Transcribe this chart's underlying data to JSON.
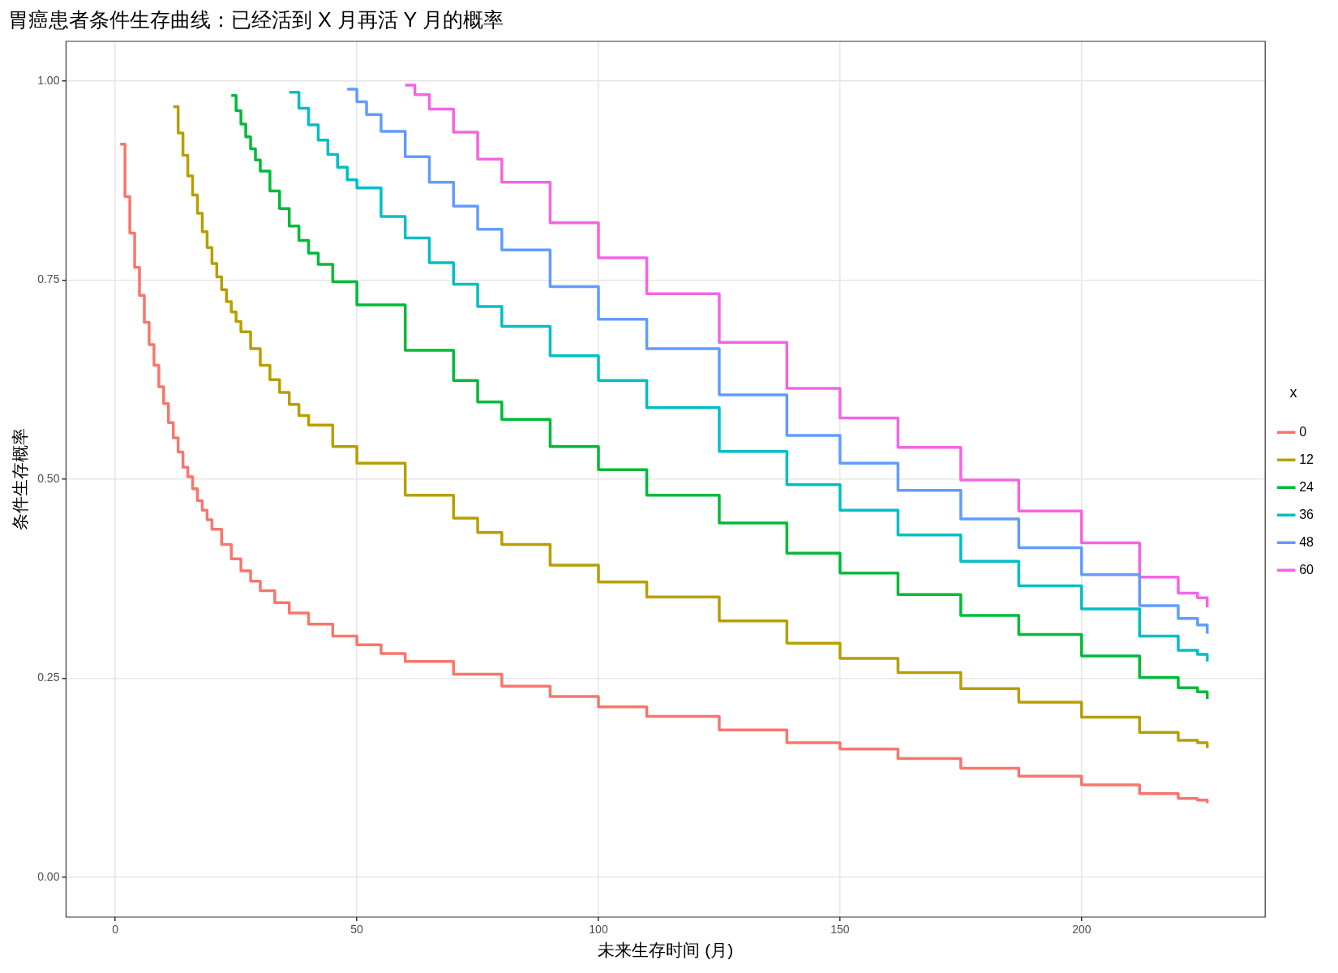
{
  "chart_data": {
    "type": "step",
    "title": "胃癌患者条件生存曲线：已经活到 X 月再活 Y 月的概率",
    "xlabel": "未来生存时间 (月)",
    "ylabel": "条件生存概率",
    "legend_title": "x",
    "legend": "right",
    "grid": true,
    "line_style": "solid",
    "xlim": [
      -10.2,
      238
    ],
    "ylim": [
      -0.05,
      1.05
    ],
    "xticks": [
      0,
      50,
      100,
      150,
      200
    ],
    "yticks": [
      {
        "value": 0,
        "label": "0.00"
      },
      {
        "value": 0.25,
        "label": "0.25"
      },
      {
        "value": 0.5,
        "label": "0.50"
      },
      {
        "value": 0.75,
        "label": "0.75"
      },
      {
        "value": 1,
        "label": "1.00"
      }
    ],
    "series": [
      {
        "name": "0",
        "color": "#f8766d",
        "x": [
          1,
          2,
          3,
          4,
          5,
          6,
          7,
          8,
          9,
          10,
          11,
          12,
          13,
          14,
          15,
          16,
          17,
          18,
          19,
          20,
          22,
          24,
          26,
          28,
          30,
          33,
          36,
          40,
          45,
          50,
          55,
          60,
          70,
          80,
          90,
          100,
          110,
          125,
          139,
          150,
          162,
          175,
          187,
          200,
          212,
          220,
          224,
          226
        ],
        "values": [
          0.921,
          0.855,
          0.809,
          0.766,
          0.731,
          0.697,
          0.669,
          0.643,
          0.616,
          0.595,
          0.571,
          0.552,
          0.534,
          0.515,
          0.503,
          0.488,
          0.473,
          0.461,
          0.449,
          0.437,
          0.418,
          0.4,
          0.385,
          0.372,
          0.36,
          0.345,
          0.332,
          0.318,
          0.303,
          0.292,
          0.281,
          0.271,
          0.255,
          0.24,
          0.227,
          0.214,
          0.202,
          0.185,
          0.169,
          0.161,
          0.149,
          0.137,
          0.127,
          0.116,
          0.105,
          0.099,
          0.097,
          0.093
        ]
      },
      {
        "name": "12",
        "color": "#b79f00",
        "x": [
          12,
          13,
          14,
          15,
          16,
          17,
          18,
          19,
          20,
          21,
          22,
          23,
          24,
          25,
          26,
          28,
          30,
          32,
          34,
          36,
          38,
          40,
          45,
          50,
          60,
          70,
          75,
          80,
          90,
          100,
          110,
          125,
          139,
          150,
          162,
          175,
          187,
          200,
          212,
          220,
          224,
          226
        ],
        "values": [
          0.968,
          0.935,
          0.907,
          0.881,
          0.857,
          0.834,
          0.811,
          0.791,
          0.771,
          0.754,
          0.738,
          0.723,
          0.71,
          0.698,
          0.685,
          0.664,
          0.643,
          0.625,
          0.609,
          0.594,
          0.58,
          0.568,
          0.541,
          0.52,
          0.48,
          0.451,
          0.433,
          0.418,
          0.392,
          0.371,
          0.352,
          0.322,
          0.294,
          0.275,
          0.257,
          0.237,
          0.22,
          0.201,
          0.182,
          0.172,
          0.169,
          0.162
        ]
      },
      {
        "name": "24",
        "color": "#00ba38",
        "x": [
          24,
          25,
          26,
          27,
          28,
          29,
          30,
          32,
          34,
          36,
          38,
          40,
          42,
          45,
          50,
          60,
          70,
          75,
          80,
          90,
          100,
          110,
          125,
          139,
          150,
          162,
          175,
          187,
          200,
          212,
          220,
          224,
          226
        ],
        "values": [
          0.982,
          0.963,
          0.946,
          0.93,
          0.915,
          0.901,
          0.887,
          0.862,
          0.84,
          0.818,
          0.8,
          0.784,
          0.77,
          0.748,
          0.719,
          0.662,
          0.624,
          0.597,
          0.575,
          0.541,
          0.512,
          0.48,
          0.445,
          0.407,
          0.382,
          0.355,
          0.329,
          0.305,
          0.278,
          0.251,
          0.238,
          0.233,
          0.224
        ]
      },
      {
        "name": "36",
        "color": "#00bfc4",
        "x": [
          36,
          38,
          40,
          42,
          44,
          46,
          48,
          50,
          55,
          60,
          65,
          70,
          75,
          80,
          90,
          100,
          110,
          125,
          139,
          150,
          162,
          175,
          187,
          200,
          212,
          220,
          224,
          226
        ],
        "values": [
          0.986,
          0.966,
          0.945,
          0.926,
          0.908,
          0.892,
          0.876,
          0.866,
          0.83,
          0.803,
          0.772,
          0.745,
          0.717,
          0.692,
          0.655,
          0.624,
          0.59,
          0.535,
          0.493,
          0.461,
          0.43,
          0.397,
          0.366,
          0.337,
          0.303,
          0.285,
          0.28,
          0.271
        ]
      },
      {
        "name": "48",
        "color": "#619cff",
        "x": [
          48,
          50,
          52,
          55,
          60,
          65,
          70,
          75,
          80,
          90,
          100,
          110,
          125,
          139,
          150,
          162,
          175,
          187,
          200,
          212,
          220,
          224,
          226
        ],
        "values": [
          0.99,
          0.974,
          0.958,
          0.937,
          0.905,
          0.873,
          0.843,
          0.814,
          0.788,
          0.742,
          0.701,
          0.664,
          0.606,
          0.555,
          0.52,
          0.486,
          0.45,
          0.414,
          0.38,
          0.341,
          0.325,
          0.317,
          0.306
        ]
      },
      {
        "name": "60",
        "color": "#f564e3",
        "x": [
          60,
          62,
          65,
          70,
          75,
          80,
          90,
          100,
          110,
          125,
          139,
          150,
          162,
          175,
          187,
          200,
          212,
          220,
          224,
          226
        ],
        "values": [
          0.995,
          0.983,
          0.965,
          0.936,
          0.902,
          0.873,
          0.822,
          0.778,
          0.733,
          0.672,
          0.614,
          0.577,
          0.54,
          0.499,
          0.46,
          0.42,
          0.377,
          0.357,
          0.351,
          0.339
        ]
      }
    ]
  }
}
